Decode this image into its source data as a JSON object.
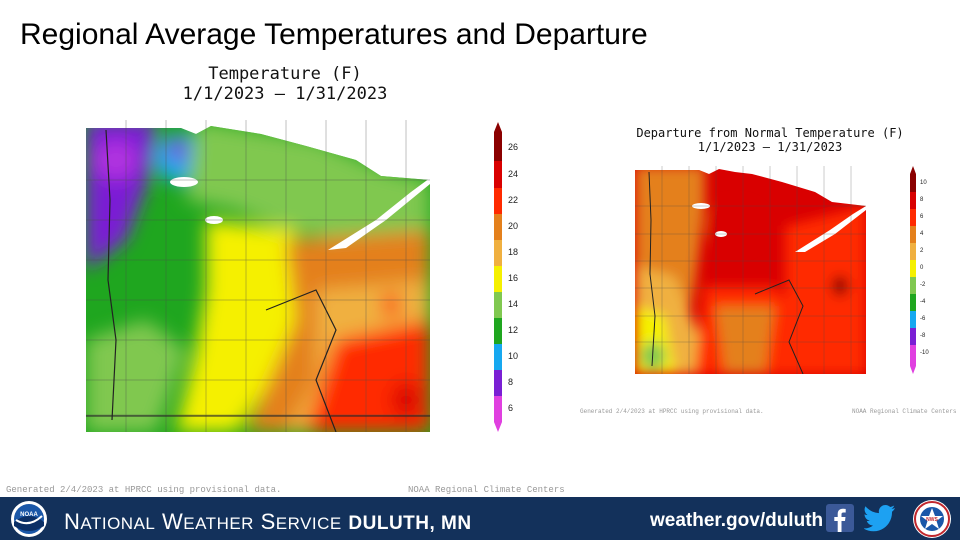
{
  "slide_title": "Regional Average Temperatures and Departure",
  "temperature_map": {
    "title": "Temperature (F)",
    "period": "1/1/2023 – 1/31/2023",
    "legend_values": [
      "26",
      "24",
      "22",
      "20",
      "18",
      "16",
      "14",
      "12",
      "10",
      "8",
      "6"
    ],
    "legend_colors": [
      "#8b0000",
      "#d90000",
      "#ff2a00",
      "#e4801c",
      "#f0b040",
      "#f5f000",
      "#80c850",
      "#1fa61f",
      "#16a8f0",
      "#7a1fd4",
      "#e040e0"
    ],
    "credit_left": "Generated 2/4/2023 at HPRCC using provisional data.",
    "credit_right": "NOAA Regional Climate Centers"
  },
  "departure_map": {
    "title": "Departure from Normal Temperature (F)",
    "period": "1/1/2023 – 1/31/2023",
    "legend_values": [
      "10",
      "8",
      "6",
      "4",
      "2",
      "0",
      "-2",
      "-4",
      "-6",
      "-8",
      "-10"
    ],
    "legend_colors": [
      "#8b0000",
      "#d90000",
      "#ff2a00",
      "#e4801c",
      "#f0b040",
      "#f5f000",
      "#80c850",
      "#1fa61f",
      "#16a8f0",
      "#7a1fd4",
      "#e040e0"
    ],
    "credit_left": "Generated 2/4/2023 at HPRCC using provisional data.",
    "credit_right": "NOAA Regional Climate Centers"
  },
  "footer": {
    "org_first": "N",
    "org_first_rest": "ATIONAL",
    "org_second": "W",
    "org_second_rest": "EATHER",
    "org_third": "S",
    "org_third_rest": "ERVICE",
    "office": "Duluth, MN",
    "url": "weather.gov/duluth",
    "noaa_logo_text": "NOAA",
    "nws_logo_text": "NWS"
  },
  "colors": {
    "footer_bg": "#13315b",
    "facebook": "#3b5998",
    "twitter": "#1da1f2"
  }
}
